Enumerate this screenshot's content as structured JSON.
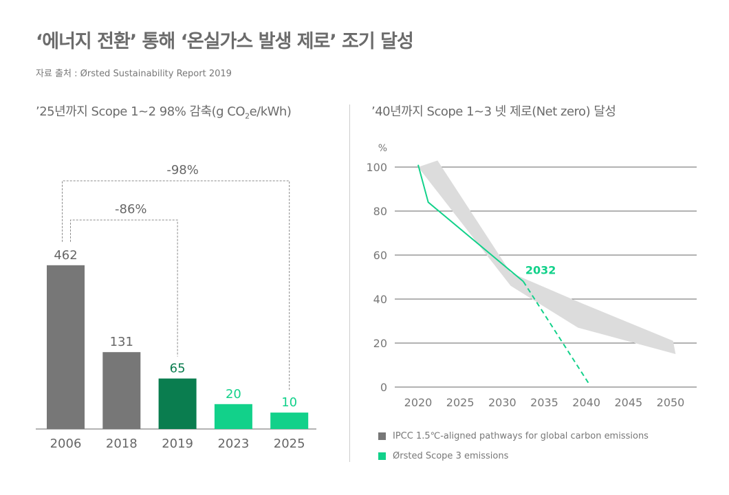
{
  "header": {
    "title": "‘에너지 전환’ 통해 ‘온실가스 발생 제로’ 조기 달성",
    "source": "자료 출처 : Ørsted Sustainability Report 2019"
  },
  "colors": {
    "gray_bar": "#777777",
    "dark_green": "#0a7d4f",
    "bright_green": "#12d18a",
    "band": "#dcdcdc",
    "grid": "#666666"
  },
  "chart_data": [
    {
      "type": "bar",
      "title_parts": [
        "’25년까지 Scope 1~2 98% 감축(g CO",
        "2",
        "e/kWh)"
      ],
      "categories": [
        "2006",
        "2018",
        "2019",
        "2023",
        "2025"
      ],
      "values": [
        462,
        131,
        65,
        20,
        10
      ],
      "bar_colors": [
        "#777777",
        "#777777",
        "#0a7d4f",
        "#12d18a",
        "#12d18a"
      ],
      "label_colors": [
        "#666666",
        "#666666",
        "#0a7d4f",
        "#12d18a",
        "#12d18a"
      ],
      "annotations": [
        {
          "label": "-98%",
          "from": "2006",
          "to": "2025"
        },
        {
          "label": "-86%",
          "from": "2006",
          "to": "2019"
        }
      ]
    },
    {
      "type": "line",
      "title": "’40년까지 Scope 1~3 넷 제로(Net zero) 달성",
      "ylabel": "%",
      "ylim": [
        0,
        100
      ],
      "yticks": [
        0,
        20,
        40,
        60,
        80,
        100
      ],
      "xlim": [
        2020,
        2050
      ],
      "xticks": [
        2020,
        2025,
        2030,
        2035,
        2040,
        2045,
        2050
      ],
      "grid": true,
      "annotation": "2032",
      "band": {
        "name": "IPCC 1.5℃-aligned pathways for global carbon emissions",
        "upper": [
          [
            2020,
            100
          ],
          [
            2022.3,
            103
          ],
          [
            2031,
            52
          ],
          [
            2039.5,
            38
          ],
          [
            2050.3,
            21
          ]
        ],
        "lower": [
          [
            2020,
            100
          ],
          [
            2031,
            46
          ],
          [
            2039,
            27
          ],
          [
            2050.6,
            15
          ]
        ]
      },
      "series": [
        {
          "name": "Ørsted Scope 3 emissions",
          "solid": [
            [
              2020,
              101
            ],
            [
              2021.2,
              84
            ],
            [
              2032.5,
              48
            ]
          ],
          "dashed": [
            [
              2032.5,
              48
            ],
            [
              2040.3,
              1.5
            ]
          ]
        }
      ],
      "legend": [
        {
          "label": "IPCC 1.5℃-aligned pathways for global carbon emissions",
          "color": "#777777"
        },
        {
          "label": "Ørsted Scope 3 emissions",
          "color": "#12d18a"
        }
      ]
    }
  ]
}
